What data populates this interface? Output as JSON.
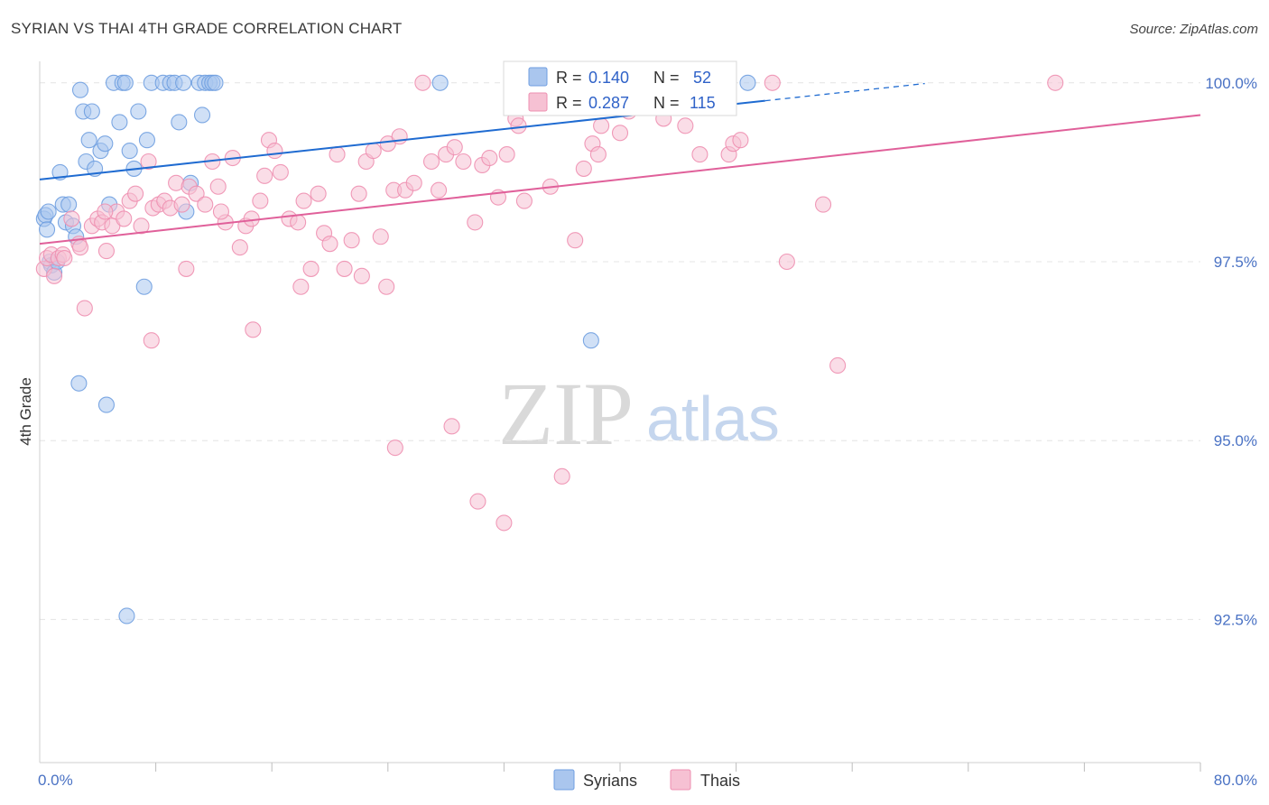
{
  "chart_data": {
    "type": "scatter",
    "title": "SYRIAN VS THAI 4TH GRADE CORRELATION CHART",
    "source": "Source: ZipAtlas.com",
    "xlabel": "",
    "ylabel": "4th Grade",
    "xlim": [
      0,
      80
    ],
    "ylim": [
      90.5,
      100.3
    ],
    "x_tick_labels": [
      {
        "value": 0,
        "label": "0.0%"
      },
      {
        "value": 80,
        "label": "80.0%"
      }
    ],
    "y_tick_labels": [
      {
        "value": 100.0,
        "label": "100.0%"
      },
      {
        "value": 97.5,
        "label": "97.5%"
      },
      {
        "value": 95.0,
        "label": "95.0%"
      },
      {
        "value": 92.5,
        "label": "92.5%"
      }
    ],
    "grid": true,
    "watermark": {
      "zip": "ZIP",
      "atlas": "atlas"
    },
    "legend_position": "top-center",
    "series": [
      {
        "name": "Syrians",
        "color": "#6f9ee0",
        "fill": "#aac6ee",
        "line_color": "#1f6bd1",
        "R": "0.140",
        "N": "52",
        "trend": {
          "x0": 0,
          "y0": 98.65,
          "x1": 50,
          "y1": 99.75,
          "dash_to_x": 61,
          "dash_to_y": 99.99
        },
        "points": [
          [
            0.3,
            98.1
          ],
          [
            0.4,
            98.15
          ],
          [
            0.5,
            97.95
          ],
          [
            0.6,
            98.2
          ],
          [
            0.7,
            97.5
          ],
          [
            0.8,
            97.45
          ],
          [
            1.0,
            97.35
          ],
          [
            1.2,
            97.5
          ],
          [
            1.4,
            98.75
          ],
          [
            1.6,
            98.3
          ],
          [
            1.8,
            98.05
          ],
          [
            2.0,
            98.3
          ],
          [
            2.3,
            98.0
          ],
          [
            2.5,
            97.85
          ],
          [
            2.8,
            99.9
          ],
          [
            3.0,
            99.6
          ],
          [
            3.2,
            98.9
          ],
          [
            3.4,
            99.2
          ],
          [
            3.6,
            99.6
          ],
          [
            3.8,
            98.8
          ],
          [
            4.2,
            99.05
          ],
          [
            4.5,
            99.15
          ],
          [
            4.8,
            98.3
          ],
          [
            5.1,
            100.0
          ],
          [
            5.5,
            99.45
          ],
          [
            5.7,
            100.0
          ],
          [
            5.9,
            100.0
          ],
          [
            6.2,
            99.05
          ],
          [
            6.5,
            98.8
          ],
          [
            6.8,
            99.6
          ],
          [
            7.2,
            97.15
          ],
          [
            7.4,
            99.2
          ],
          [
            7.7,
            100.0
          ],
          [
            8.5,
            100.0
          ],
          [
            9.0,
            100.0
          ],
          [
            9.3,
            100.0
          ],
          [
            9.6,
            99.45
          ],
          [
            9.9,
            100.0
          ],
          [
            10.1,
            98.2
          ],
          [
            10.4,
            98.6
          ],
          [
            11.0,
            100.0
          ],
          [
            11.2,
            99.55
          ],
          [
            11.4,
            100.0
          ],
          [
            11.7,
            100.0
          ],
          [
            11.9,
            100.0
          ],
          [
            12.1,
            100.0
          ],
          [
            27.6,
            100.0
          ],
          [
            38.0,
            96.4
          ],
          [
            48.8,
            100.0
          ],
          [
            2.7,
            95.8
          ],
          [
            4.6,
            95.5
          ],
          [
            6.0,
            92.55
          ]
        ]
      },
      {
        "name": "Thais",
        "color": "#ee8fb0",
        "fill": "#f6c1d3",
        "line_color": "#e0609a",
        "R": "0.287",
        "N": "115",
        "trend": {
          "x0": 0,
          "y0": 97.75,
          "x1": 80,
          "y1": 99.55
        },
        "points": [
          [
            0.3,
            97.4
          ],
          [
            0.5,
            97.55
          ],
          [
            0.8,
            97.6
          ],
          [
            1.0,
            97.3
          ],
          [
            1.3,
            97.55
          ],
          [
            1.6,
            97.6
          ],
          [
            2.2,
            98.1
          ],
          [
            2.7,
            97.75
          ],
          [
            3.1,
            96.85
          ],
          [
            3.6,
            98.0
          ],
          [
            4.0,
            98.1
          ],
          [
            4.3,
            98.05
          ],
          [
            4.6,
            97.65
          ],
          [
            5.0,
            98.0
          ],
          [
            5.3,
            98.2
          ],
          [
            5.8,
            98.1
          ],
          [
            6.2,
            98.35
          ],
          [
            6.6,
            98.45
          ],
          [
            7.0,
            98.0
          ],
          [
            7.5,
            98.9
          ],
          [
            7.8,
            98.25
          ],
          [
            8.2,
            98.3
          ],
          [
            8.6,
            98.35
          ],
          [
            9.0,
            98.25
          ],
          [
            9.4,
            98.6
          ],
          [
            9.8,
            98.3
          ],
          [
            10.3,
            98.55
          ],
          [
            10.8,
            98.45
          ],
          [
            11.4,
            98.3
          ],
          [
            11.9,
            98.9
          ],
          [
            12.3,
            98.55
          ],
          [
            12.8,
            98.05
          ],
          [
            13.3,
            98.95
          ],
          [
            13.8,
            97.7
          ],
          [
            14.2,
            98.0
          ],
          [
            14.6,
            98.1
          ],
          [
            15.2,
            98.35
          ],
          [
            15.8,
            99.2
          ],
          [
            16.2,
            99.05
          ],
          [
            16.6,
            98.75
          ],
          [
            17.2,
            98.1
          ],
          [
            17.8,
            98.05
          ],
          [
            18.2,
            98.35
          ],
          [
            18.7,
            97.4
          ],
          [
            19.2,
            98.45
          ],
          [
            19.6,
            97.9
          ],
          [
            20.0,
            97.75
          ],
          [
            20.5,
            99.0
          ],
          [
            21.0,
            97.4
          ],
          [
            21.5,
            97.8
          ],
          [
            22.0,
            98.45
          ],
          [
            22.5,
            98.9
          ],
          [
            23.0,
            99.05
          ],
          [
            23.5,
            97.85
          ],
          [
            24.0,
            99.15
          ],
          [
            24.4,
            98.5
          ],
          [
            24.8,
            99.25
          ],
          [
            25.2,
            98.5
          ],
          [
            25.8,
            98.6
          ],
          [
            26.4,
            100.0
          ],
          [
            27.0,
            98.9
          ],
          [
            27.5,
            98.5
          ],
          [
            28.0,
            99.0
          ],
          [
            28.6,
            99.1
          ],
          [
            29.2,
            98.9
          ],
          [
            30.0,
            98.05
          ],
          [
            30.5,
            98.85
          ],
          [
            31.0,
            98.95
          ],
          [
            31.6,
            98.4
          ],
          [
            32.2,
            99.0
          ],
          [
            32.8,
            99.5
          ],
          [
            33.4,
            98.35
          ],
          [
            34.0,
            99.75
          ],
          [
            34.6,
            100.0
          ],
          [
            35.2,
            98.55
          ],
          [
            35.8,
            99.85
          ],
          [
            36.3,
            100.0
          ],
          [
            36.9,
            97.8
          ],
          [
            37.5,
            98.8
          ],
          [
            38.1,
            99.15
          ],
          [
            38.7,
            99.4
          ],
          [
            39.3,
            100.0
          ],
          [
            40.0,
            99.3
          ],
          [
            40.6,
            99.6
          ],
          [
            41.2,
            99.85
          ],
          [
            42.0,
            100.0
          ],
          [
            43.0,
            99.5
          ],
          [
            44.5,
            99.4
          ],
          [
            45.5,
            99.0
          ],
          [
            47.5,
            99.0
          ],
          [
            47.8,
            99.15
          ],
          [
            48.3,
            99.2
          ],
          [
            50.5,
            100.0
          ],
          [
            51.5,
            97.5
          ],
          [
            54.0,
            98.3
          ],
          [
            55.0,
            96.05
          ],
          [
            70.0,
            100.0
          ],
          [
            14.7,
            96.55
          ],
          [
            18.0,
            97.15
          ],
          [
            22.2,
            97.3
          ],
          [
            23.9,
            97.15
          ],
          [
            24.5,
            94.9
          ],
          [
            10.1,
            97.4
          ],
          [
            7.7,
            96.4
          ],
          [
            4.5,
            98.2
          ],
          [
            2.8,
            97.7
          ],
          [
            1.7,
            97.55
          ],
          [
            12.5,
            98.2
          ],
          [
            15.5,
            98.7
          ],
          [
            28.4,
            95.2
          ],
          [
            30.2,
            94.15
          ],
          [
            32.0,
            93.85
          ],
          [
            36.0,
            94.5
          ],
          [
            38.5,
            99.0
          ],
          [
            33.0,
            99.4
          ]
        ]
      }
    ]
  },
  "legend": {
    "r_label": "R =",
    "n_label": "N ="
  }
}
